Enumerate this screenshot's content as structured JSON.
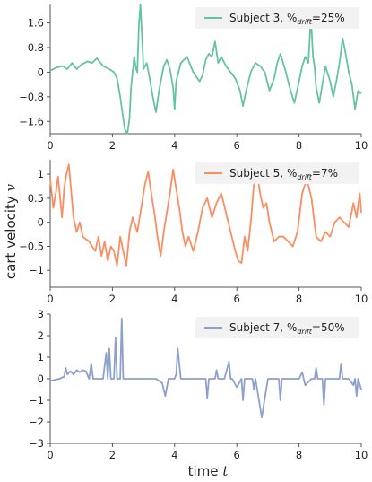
{
  "figure": {
    "ylabel": "cart velocity v",
    "xlabel": "time t"
  },
  "chart_data": [
    {
      "type": "line",
      "legend": "top-right",
      "series": [
        {
          "name": "Subject 3, %drift=25%",
          "color": "#66c2a5",
          "x": [
            0,
            0.2,
            0.4,
            0.55,
            0.7,
            0.85,
            1.0,
            1.2,
            1.35,
            1.5,
            1.7,
            1.9,
            2.05,
            2.15,
            2.25,
            2.32,
            2.4,
            2.48,
            2.55,
            2.6,
            2.65,
            2.7,
            2.76,
            2.8,
            2.85,
            2.9,
            2.95,
            3.0,
            3.1,
            3.2,
            3.3,
            3.4,
            3.5,
            3.65,
            3.75,
            3.85,
            3.95,
            4.0,
            4.05,
            4.2,
            4.4,
            4.6,
            4.8,
            4.9,
            5.0,
            5.1,
            5.2,
            5.3,
            5.4,
            5.5,
            5.65,
            5.8,
            5.95,
            6.1,
            6.2,
            6.3,
            6.45,
            6.6,
            6.75,
            6.9,
            7.05,
            7.2,
            7.3,
            7.4,
            7.55,
            7.7,
            7.85,
            8.0,
            8.1,
            8.2,
            8.3,
            8.38,
            8.45,
            8.5,
            8.55,
            8.65,
            8.75,
            8.85,
            9.0,
            9.1,
            9.2,
            9.3,
            9.4,
            9.5,
            9.6,
            9.7,
            9.8,
            9.9,
            10.0
          ],
          "y": [
            0.05,
            0.15,
            0.2,
            0.1,
            0.3,
            0.1,
            0.25,
            0.35,
            0.3,
            0.45,
            0.2,
            0.1,
            0.0,
            -0.2,
            -0.8,
            -1.3,
            -1.85,
            -2.0,
            -1.5,
            -0.5,
            0.0,
            0.5,
            0.1,
            0.0,
            1.5,
            2.2,
            1.2,
            0.1,
            0.3,
            -0.2,
            -0.8,
            -1.3,
            -0.6,
            0.2,
            0.4,
            0.1,
            -0.5,
            -1.2,
            -0.3,
            0.3,
            0.5,
            0.0,
            -0.3,
            -0.1,
            0.4,
            0.6,
            0.5,
            1.0,
            0.3,
            0.5,
            0.2,
            0.0,
            -0.2,
            -0.6,
            -1.1,
            -0.6,
            0.0,
            0.3,
            0.2,
            0.0,
            -0.6,
            -0.2,
            0.3,
            0.6,
            0.1,
            -0.5,
            -1.0,
            -0.3,
            0.2,
            0.5,
            0.3,
            1.8,
            0.5,
            0.2,
            -0.5,
            -1.0,
            -0.4,
            0.2,
            -0.3,
            -0.8,
            -0.3,
            0.3,
            1.1,
            0.6,
            0.0,
            -0.4,
            -1.2,
            -0.6,
            -0.7
          ]
        }
      ],
      "xlim": [
        0,
        10
      ],
      "ylim": [
        -2.0,
        2.2
      ],
      "yticks": [
        -1.6,
        -0.8,
        0.0,
        0.8,
        1.6
      ],
      "xticks": [
        0,
        2,
        4,
        6,
        8,
        10
      ]
    },
    {
      "type": "line",
      "legend": "top-right",
      "series": [
        {
          "name": "Subject 5, %drift=7%",
          "color": "#fc8d62",
          "x": [
            0,
            0.1,
            0.18,
            0.25,
            0.32,
            0.38,
            0.45,
            0.52,
            0.6,
            0.68,
            0.75,
            0.85,
            0.95,
            1.05,
            1.15,
            1.25,
            1.35,
            1.45,
            1.55,
            1.65,
            1.75,
            1.85,
            1.95,
            2.05,
            2.15,
            2.25,
            2.35,
            2.45,
            2.55,
            2.65,
            2.8,
            2.95,
            3.05,
            3.15,
            3.25,
            3.35,
            3.45,
            3.55,
            3.65,
            3.75,
            3.85,
            3.95,
            4.05,
            4.15,
            4.25,
            4.35,
            4.45,
            4.6,
            4.75,
            4.9,
            5.05,
            5.2,
            5.35,
            5.5,
            5.65,
            5.8,
            5.95,
            6.05,
            6.15,
            6.25,
            6.35,
            6.45,
            6.55,
            6.65,
            6.75,
            6.85,
            6.95,
            7.05,
            7.2,
            7.35,
            7.5,
            7.65,
            7.8,
            7.95,
            8.1,
            8.25,
            8.4,
            8.55,
            8.7,
            8.85,
            9.0,
            9.15,
            9.3,
            9.45,
            9.6,
            9.75,
            9.85,
            9.95,
            10.0
          ],
          "y": [
            0.9,
            0.3,
            0.6,
            0.95,
            0.5,
            0.1,
            0.7,
            1.0,
            1.2,
            0.6,
            0.1,
            -0.2,
            0.0,
            -0.3,
            -0.35,
            -0.4,
            -0.5,
            -0.6,
            -0.3,
            -0.7,
            -0.4,
            -0.8,
            -0.5,
            -0.6,
            -0.9,
            -0.3,
            -0.6,
            -0.9,
            -0.2,
            0.1,
            -0.2,
            0.4,
            0.8,
            1.05,
            0.6,
            0.2,
            -0.3,
            -0.7,
            -0.2,
            0.2,
            0.6,
            1.1,
            0.7,
            0.3,
            -0.2,
            -0.5,
            -0.3,
            -0.6,
            -0.2,
            0.3,
            0.5,
            0.1,
            0.4,
            0.6,
            0.2,
            -0.2,
            -0.6,
            -0.8,
            -0.85,
            -0.3,
            -0.6,
            0.0,
            0.8,
            1.0,
            0.6,
            0.3,
            0.4,
            0.0,
            -0.4,
            -0.3,
            -0.3,
            -0.4,
            -0.5,
            -0.2,
            0.6,
            0.9,
            0.5,
            -0.3,
            -0.4,
            -0.2,
            -0.3,
            0.0,
            0.1,
            0.0,
            -0.1,
            0.4,
            0.1,
            0.6,
            0.2
          ]
        }
      ],
      "xlim": [
        0,
        10
      ],
      "ylim": [
        -1.35,
        1.3
      ],
      "yticks": [
        -1.0,
        -0.5,
        0.0,
        0.5,
        1.0
      ],
      "xticks": [
        0,
        2,
        4,
        6,
        8,
        10
      ]
    },
    {
      "type": "line",
      "legend": "top-right",
      "series": [
        {
          "name": "Subject 7, %drift=50%",
          "color": "#8da0cb",
          "x": [
            0,
            0.3,
            0.45,
            0.5,
            0.55,
            0.65,
            0.75,
            0.85,
            0.95,
            1.05,
            1.15,
            1.25,
            1.32,
            1.38,
            1.5,
            1.7,
            1.8,
            1.85,
            1.9,
            1.95,
            2.05,
            2.1,
            2.15,
            2.25,
            2.3,
            2.35,
            2.45,
            2.6,
            3.0,
            3.4,
            3.6,
            3.7,
            3.8,
            4.0,
            4.05,
            4.1,
            4.2,
            4.6,
            4.8,
            5.0,
            5.05,
            5.1,
            5.3,
            5.35,
            5.4,
            5.6,
            5.75,
            5.8,
            5.85,
            6.0,
            6.15,
            6.2,
            6.25,
            6.4,
            6.5,
            6.55,
            6.6,
            6.8,
            7.0,
            7.2,
            7.35,
            7.4,
            7.45,
            7.6,
            7.8,
            8.0,
            8.1,
            8.15,
            8.2,
            8.4,
            8.5,
            8.55,
            8.6,
            8.75,
            8.8,
            8.85,
            9.0,
            9.2,
            9.3,
            9.35,
            9.4,
            9.6,
            9.75,
            9.8,
            9.85,
            9.9,
            10.0
          ],
          "y": [
            -0.1,
            0.0,
            0.1,
            0.5,
            0.2,
            0.35,
            0.2,
            0.4,
            0.3,
            0.4,
            0.35,
            0.0,
            0.7,
            0.0,
            0.0,
            0.0,
            1.2,
            0.0,
            1.4,
            0.0,
            0.0,
            1.9,
            0.0,
            0.0,
            2.8,
            0.0,
            0.0,
            0.0,
            0.0,
            0.0,
            -0.2,
            -0.8,
            0.0,
            0.0,
            0.2,
            1.4,
            0.0,
            0.0,
            0.0,
            0.0,
            -0.9,
            0.0,
            0.0,
            0.4,
            0.0,
            0.0,
            0.8,
            0.0,
            0.0,
            -0.4,
            0.0,
            -1.0,
            0.0,
            0.0,
            0.0,
            -0.5,
            0.0,
            -1.8,
            0.0,
            0.0,
            0.0,
            -1.0,
            0.0,
            0.0,
            0.0,
            0.0,
            0.3,
            0.0,
            -0.3,
            0.0,
            0.0,
            0.5,
            0.0,
            0.0,
            -1.2,
            0.0,
            0.0,
            0.0,
            0.0,
            0.7,
            0.0,
            0.0,
            -0.3,
            0.0,
            -0.8,
            0.0,
            -0.5
          ]
        }
      ],
      "xlim": [
        0,
        10
      ],
      "ylim": [
        -3,
        3
      ],
      "yticks": [
        -3,
        -2,
        -1,
        0,
        1,
        2,
        3
      ],
      "xticks": [
        0,
        2,
        4,
        6,
        8,
        10
      ]
    }
  ]
}
